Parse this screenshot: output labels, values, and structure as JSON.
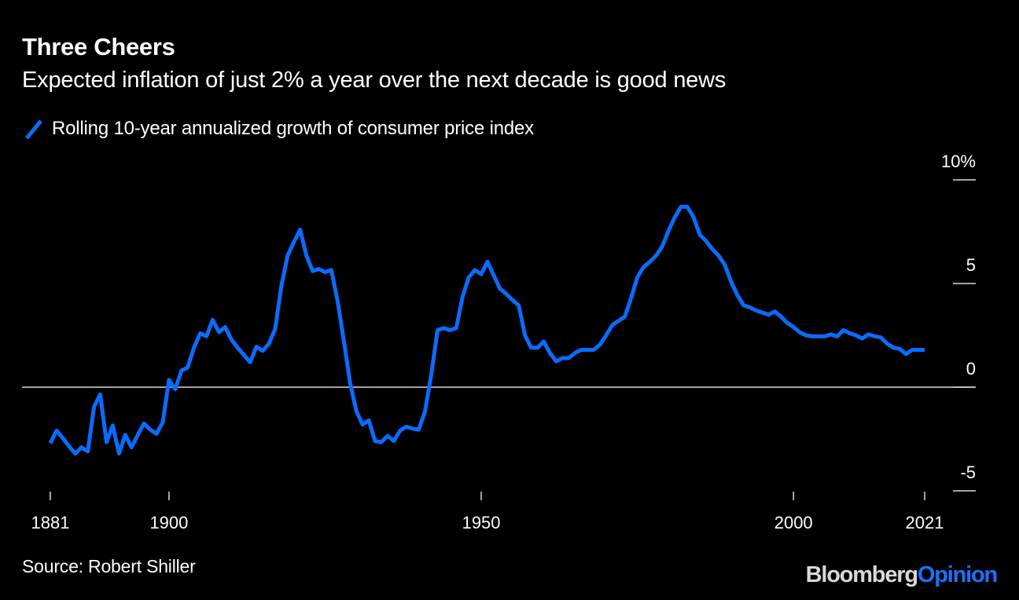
{
  "header": {
    "title": "Three Cheers",
    "subtitle": "Expected inflation of just 2% a year over the next decade is good news"
  },
  "legend": {
    "label": "Rolling 10-year annualized growth of consumer price index",
    "color": "#0a6cff"
  },
  "footer": {
    "source": "Source: Robert Shiller",
    "brand_main": "Bloomberg",
    "brand_accent": "Opinion"
  },
  "colors": {
    "background": "#000000",
    "line": "#0a6cff",
    "axis": "#d9d9d9",
    "brand_accent": "#1a73ff"
  },
  "chart_data": {
    "type": "line",
    "title": "Three Cheers",
    "subtitle": "Expected inflation of just 2% a year over the next decade is good news",
    "xlabel": "",
    "ylabel": "",
    "xlim": [
      1881,
      2021
    ],
    "ylim": [
      -5,
      10
    ],
    "x_ticks": [
      1881,
      1900,
      1950,
      2000,
      2021
    ],
    "x_tick_labels": [
      "1881",
      "1900",
      "1950",
      "2000",
      "2021"
    ],
    "y_ticks": [
      10,
      5,
      0,
      -5
    ],
    "y_tick_labels": [
      "10%",
      "5",
      "0",
      "-5"
    ],
    "y_axis_side": "right",
    "zero_line": true,
    "grid": false,
    "legend_position": "top-left",
    "series": [
      {
        "name": "Rolling 10-year annualized growth of consumer price index",
        "x": [
          1881,
          1882,
          1883,
          1884,
          1885,
          1886,
          1887,
          1888,
          1889,
          1890,
          1891,
          1892,
          1893,
          1894,
          1895,
          1896,
          1897,
          1898,
          1899,
          1900,
          1901,
          1902,
          1903,
          1904,
          1905,
          1906,
          1907,
          1908,
          1909,
          1910,
          1911,
          1912,
          1913,
          1914,
          1915,
          1916,
          1917,
          1918,
          1919,
          1920,
          1921,
          1922,
          1923,
          1924,
          1925,
          1926,
          1927,
          1928,
          1929,
          1930,
          1931,
          1932,
          1933,
          1934,
          1935,
          1936,
          1937,
          1938,
          1939,
          1940,
          1941,
          1942,
          1943,
          1944,
          1945,
          1946,
          1947,
          1948,
          1949,
          1950,
          1951,
          1952,
          1953,
          1954,
          1955,
          1956,
          1957,
          1958,
          1959,
          1960,
          1961,
          1962,
          1963,
          1964,
          1965,
          1966,
          1967,
          1968,
          1969,
          1970,
          1971,
          1972,
          1973,
          1974,
          1975,
          1976,
          1977,
          1978,
          1979,
          1980,
          1981,
          1982,
          1983,
          1984,
          1985,
          1986,
          1987,
          1988,
          1989,
          1990,
          1991,
          1992,
          1993,
          1994,
          1995,
          1996,
          1997,
          1998,
          1999,
          2000,
          2001,
          2002,
          2003,
          2004,
          2005,
          2006,
          2007,
          2008,
          2009,
          2010,
          2011,
          2012,
          2013,
          2014,
          2015,
          2016,
          2017,
          2018,
          2019,
          2020,
          2021
        ],
        "values": [
          -2.7,
          -2.1,
          -2.45,
          -2.85,
          -3.2,
          -2.9,
          -3.1,
          -0.95,
          -0.35,
          -2.65,
          -1.85,
          -3.2,
          -2.3,
          -2.9,
          -2.3,
          -1.75,
          -2.05,
          -2.25,
          -1.7,
          0.35,
          -0.1,
          0.8,
          0.95,
          1.9,
          2.6,
          2.45,
          3.25,
          2.65,
          2.9,
          2.3,
          1.9,
          1.55,
          1.2,
          1.95,
          1.75,
          2.1,
          2.8,
          4.9,
          6.35,
          7.0,
          7.6,
          6.35,
          5.6,
          5.7,
          5.55,
          5.65,
          4.15,
          2.25,
          0.2,
          -1.15,
          -1.8,
          -1.6,
          -2.6,
          -2.65,
          -2.35,
          -2.6,
          -2.1,
          -1.9,
          -2.0,
          -2.05,
          -1.15,
          0.6,
          2.75,
          2.85,
          2.75,
          2.85,
          4.35,
          5.3,
          5.65,
          5.45,
          6.05,
          5.4,
          4.75,
          4.5,
          4.2,
          3.95,
          2.5,
          1.9,
          1.9,
          2.2,
          1.65,
          1.25,
          1.4,
          1.4,
          1.65,
          1.8,
          1.8,
          1.8,
          2.05,
          2.5,
          3.0,
          3.2,
          3.4,
          4.3,
          5.3,
          5.8,
          6.05,
          6.35,
          6.8,
          7.55,
          8.2,
          8.7,
          8.7,
          8.2,
          7.35,
          7.05,
          6.65,
          6.35,
          5.9,
          5.1,
          4.45,
          3.95,
          3.85,
          3.7,
          3.6,
          3.5,
          3.65,
          3.4,
          3.1,
          2.9,
          2.65,
          2.5,
          2.45,
          2.45,
          2.45,
          2.55,
          2.45,
          2.75,
          2.6,
          2.5,
          2.35,
          2.55,
          2.45,
          2.4,
          2.1,
          1.9,
          1.85,
          1.6,
          1.8,
          1.8,
          1.8
        ]
      }
    ]
  }
}
